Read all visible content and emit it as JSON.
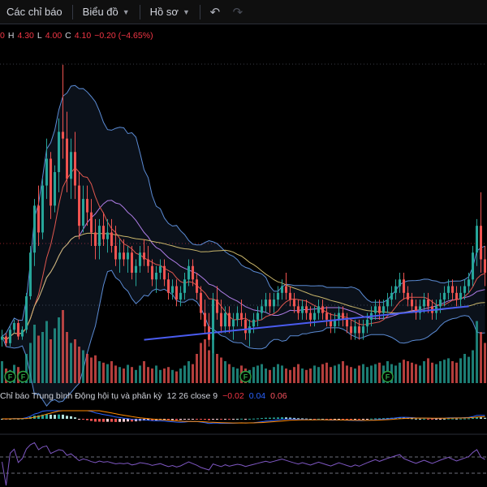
{
  "toolbar": {
    "indicators_label": "Các chỉ báo",
    "chart_label": "Biểu đồ",
    "profile_label": "Hồ sơ",
    "undo_icon": "undo-icon",
    "redo_icon": "redo-icon",
    "chevron_icon": "chevron-down-icon"
  },
  "ohlc": {
    "open_value": "0",
    "high_label": "H",
    "high_value": "4.30",
    "low_label": "L",
    "low_value": "4.00",
    "close_label": "C",
    "close_value": "4.10",
    "change": "−0.20 (−4.65%)"
  },
  "macd": {
    "name": "Chỉ báo Trung bình Động hội tụ và phân kỳ",
    "params": "12 26 close 9",
    "macd_value": "−0.02",
    "signal_value": "0.04",
    "hist_value": "0.06"
  },
  "markers": {
    "label": "F"
  },
  "colors": {
    "background": "#000000",
    "up": "#26a69a",
    "down": "#ef5350",
    "bollinger": "#5b8bd4",
    "trendline": "#4a5cf0",
    "macd_line": "#2962ff",
    "signal_line": "#ff8a00",
    "rsi_line": "#7e57c2"
  },
  "chart_data": {
    "type": "candlestick",
    "candles": [
      [
        4.2,
        4.35,
        4.1,
        4.25
      ],
      [
        4.25,
        4.3,
        4.1,
        4.15
      ],
      [
        4.15,
        4.4,
        4.1,
        4.35
      ],
      [
        4.35,
        4.5,
        4.3,
        4.45
      ],
      [
        4.45,
        4.5,
        4.2,
        4.25
      ],
      [
        4.25,
        4.4,
        4.2,
        4.35
      ],
      [
        4.35,
        4.9,
        4.3,
        4.85
      ],
      [
        4.85,
        5.6,
        4.8,
        5.5
      ],
      [
        5.5,
        6.3,
        5.3,
        6.2
      ],
      [
        6.2,
        6.5,
        5.6,
        5.8
      ],
      [
        5.8,
        6.6,
        5.7,
        6.5
      ],
      [
        6.5,
        7.2,
        6.3,
        6.9
      ],
      [
        6.9,
        7.0,
        6.0,
        6.2
      ],
      [
        6.2,
        6.8,
        6.1,
        6.7
      ],
      [
        6.7,
        7.5,
        6.4,
        7.3
      ],
      [
        7.3,
        8.3,
        6.9,
        7.2
      ],
      [
        7.2,
        7.6,
        6.4,
        6.6
      ],
      [
        6.6,
        7.2,
        6.3,
        7.0
      ],
      [
        7.0,
        7.3,
        6.3,
        6.5
      ],
      [
        6.5,
        6.7,
        5.7,
        5.9
      ],
      [
        5.9,
        6.5,
        5.8,
        6.3
      ],
      [
        6.3,
        6.5,
        5.9,
        6.1
      ],
      [
        6.1,
        6.3,
        5.6,
        5.8
      ],
      [
        5.8,
        6.0,
        5.4,
        5.6
      ],
      [
        5.6,
        6.0,
        5.4,
        5.9
      ],
      [
        5.9,
        6.1,
        5.6,
        5.7
      ],
      [
        5.7,
        6.0,
        5.5,
        5.8
      ],
      [
        5.8,
        6.0,
        5.5,
        5.6
      ],
      [
        5.6,
        5.9,
        5.3,
        5.4
      ],
      [
        5.4,
        5.7,
        5.2,
        5.5
      ],
      [
        5.5,
        5.7,
        5.3,
        5.4
      ],
      [
        5.4,
        5.6,
        5.2,
        5.5
      ],
      [
        5.5,
        5.6,
        5.1,
        5.2
      ],
      [
        5.2,
        5.4,
        5.0,
        5.3
      ],
      [
        5.3,
        5.6,
        5.2,
        5.5
      ],
      [
        5.5,
        5.7,
        5.3,
        5.4
      ],
      [
        5.4,
        5.6,
        5.2,
        5.3
      ],
      [
        5.3,
        5.4,
        5.0,
        5.1
      ],
      [
        5.1,
        5.3,
        4.9,
        5.2
      ],
      [
        5.2,
        5.4,
        5.1,
        5.3
      ],
      [
        5.3,
        5.4,
        5.0,
        5.1
      ],
      [
        5.1,
        5.2,
        4.8,
        4.9
      ],
      [
        4.9,
        5.1,
        4.8,
        5.0
      ],
      [
        5.0,
        5.1,
        4.7,
        4.8
      ],
      [
        4.8,
        5.0,
        4.7,
        4.9
      ],
      [
        4.9,
        5.2,
        4.8,
        5.1
      ],
      [
        5.1,
        5.4,
        5.0,
        5.3
      ],
      [
        5.3,
        5.4,
        5.0,
        5.1
      ],
      [
        5.1,
        5.2,
        4.8,
        4.9
      ],
      [
        4.9,
        5.0,
        4.5,
        4.6
      ],
      [
        4.6,
        4.8,
        4.3,
        4.4
      ],
      [
        4.4,
        4.6,
        4.1,
        4.2
      ],
      [
        4.2,
        4.9,
        4.0,
        4.8
      ],
      [
        4.8,
        5.0,
        4.5,
        4.6
      ],
      [
        4.6,
        4.8,
        4.3,
        4.4
      ],
      [
        4.4,
        4.7,
        4.3,
        4.6
      ],
      [
        4.6,
        4.7,
        4.3,
        4.4
      ],
      [
        4.4,
        4.6,
        4.2,
        4.5
      ],
      [
        4.5,
        4.7,
        4.4,
        4.6
      ],
      [
        4.6,
        4.8,
        4.4,
        4.5
      ],
      [
        4.5,
        4.6,
        4.2,
        4.3
      ],
      [
        4.3,
        4.5,
        4.1,
        4.4
      ],
      [
        4.4,
        4.6,
        4.3,
        4.5
      ],
      [
        4.5,
        4.7,
        4.4,
        4.6
      ],
      [
        4.6,
        4.8,
        4.5,
        4.7
      ],
      [
        4.7,
        4.9,
        4.6,
        4.8
      ],
      [
        4.8,
        4.9,
        4.6,
        4.7
      ],
      [
        4.7,
        4.9,
        4.6,
        4.8
      ],
      [
        4.8,
        5.0,
        4.7,
        4.9
      ],
      [
        4.9,
        5.1,
        4.8,
        5.0
      ],
      [
        5.0,
        5.2,
        4.8,
        4.9
      ],
      [
        4.9,
        5.0,
        4.7,
        4.8
      ],
      [
        4.8,
        4.9,
        4.6,
        4.7
      ],
      [
        4.7,
        4.8,
        4.5,
        4.6
      ],
      [
        4.6,
        4.8,
        4.5,
        4.7
      ],
      [
        4.7,
        4.8,
        4.5,
        4.6
      ],
      [
        4.6,
        4.7,
        4.4,
        4.5
      ],
      [
        4.5,
        4.7,
        4.4,
        4.6
      ],
      [
        4.6,
        4.8,
        4.5,
        4.7
      ],
      [
        4.7,
        4.8,
        4.5,
        4.6
      ],
      [
        4.6,
        4.7,
        4.4,
        4.5
      ],
      [
        4.5,
        4.6,
        4.3,
        4.4
      ],
      [
        4.4,
        4.6,
        4.3,
        4.5
      ],
      [
        4.5,
        4.7,
        4.4,
        4.6
      ],
      [
        4.6,
        4.7,
        4.4,
        4.5
      ],
      [
        4.5,
        4.6,
        4.3,
        4.4
      ],
      [
        4.4,
        4.5,
        4.2,
        4.3
      ],
      [
        4.3,
        4.5,
        4.2,
        4.4
      ],
      [
        4.4,
        4.5,
        4.2,
        4.3
      ],
      [
        4.3,
        4.5,
        4.2,
        4.4
      ],
      [
        4.4,
        4.6,
        4.3,
        4.5
      ],
      [
        4.5,
        4.7,
        4.4,
        4.6
      ],
      [
        4.6,
        4.8,
        4.5,
        4.7
      ],
      [
        4.7,
        4.8,
        4.5,
        4.6
      ],
      [
        4.6,
        4.8,
        4.5,
        4.7
      ],
      [
        4.7,
        4.9,
        4.6,
        4.8
      ],
      [
        4.8,
        5.0,
        4.7,
        4.9
      ],
      [
        4.9,
        5.1,
        4.8,
        5.0
      ],
      [
        5.0,
        5.2,
        4.9,
        5.1
      ],
      [
        5.1,
        5.2,
        4.8,
        4.9
      ],
      [
        4.9,
        5.0,
        4.7,
        4.8
      ],
      [
        4.8,
        4.9,
        4.6,
        4.7
      ],
      [
        4.7,
        4.8,
        4.5,
        4.6
      ],
      [
        4.6,
        4.8,
        4.5,
        4.7
      ],
      [
        4.7,
        4.9,
        4.6,
        4.8
      ],
      [
        4.8,
        4.9,
        4.6,
        4.7
      ],
      [
        4.7,
        4.8,
        4.5,
        4.6
      ],
      [
        4.6,
        4.8,
        4.5,
        4.7
      ],
      [
        4.7,
        4.9,
        4.6,
        4.8
      ],
      [
        4.8,
        5.0,
        4.7,
        4.9
      ],
      [
        4.9,
        5.1,
        4.8,
        5.0
      ],
      [
        5.0,
        5.1,
        4.8,
        4.9
      ],
      [
        4.9,
        5.0,
        4.7,
        4.8
      ],
      [
        4.8,
        5.0,
        4.7,
        4.9
      ],
      [
        4.9,
        5.1,
        4.8,
        5.0
      ],
      [
        5.0,
        5.2,
        4.9,
        5.1
      ],
      [
        5.1,
        5.6,
        5.0,
        5.5
      ],
      [
        5.5,
        6.0,
        5.3,
        5.9
      ],
      [
        5.9,
        6.4,
        5.2,
        5.4
      ],
      [
        5.4,
        5.6,
        5.0,
        5.2
      ]
    ],
    "volume": [
      30,
      20,
      18,
      25,
      22,
      15,
      40,
      55,
      80,
      65,
      70,
      85,
      60,
      75,
      90,
      100,
      70,
      55,
      60,
      50,
      45,
      40,
      35,
      38,
      30,
      28,
      26,
      30,
      24,
      22,
      20,
      25,
      22,
      18,
      24,
      30,
      22,
      20,
      24,
      18,
      20,
      22,
      18,
      16,
      20,
      24,
      30,
      26,
      40,
      55,
      60,
      45,
      70,
      40,
      35,
      30,
      26,
      22,
      20,
      24,
      20,
      18,
      22,
      24,
      26,
      20,
      18,
      22,
      26,
      24,
      20,
      18,
      22,
      26,
      20,
      18,
      20,
      24,
      22,
      26,
      28,
      22,
      24,
      26,
      30,
      24,
      22,
      20,
      24,
      26,
      22,
      24,
      26,
      28,
      24,
      30,
      26,
      24,
      28,
      32,
      30,
      28,
      26,
      24,
      30,
      34,
      28,
      26,
      30,
      32,
      34,
      30,
      28,
      34,
      40,
      36,
      45,
      85,
      70,
      55
    ],
    "ylim": [
      3.7,
      8.6
    ],
    "legend_position": "top-left"
  }
}
